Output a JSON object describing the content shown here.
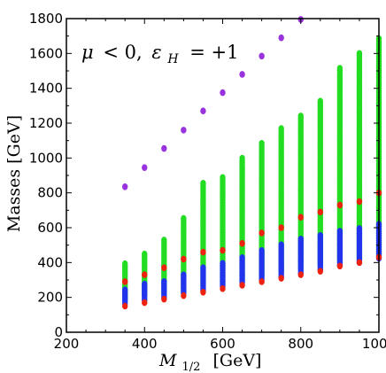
{
  "chart_data": {
    "type": "scatter",
    "title": "",
    "xlabel": {
      "symbol": "M",
      "sub": "1/2",
      "unit": "[GeV]"
    },
    "ylabel": "Masses [GeV]",
    "annotation": {
      "mu": "μ",
      "op1": "< 0,",
      "eps": "ε",
      "epssub": "H",
      "op2": "= +1"
    },
    "xlim": [
      200,
      1000
    ],
    "ylim": [
      0,
      1800
    ],
    "xticks": [
      200,
      400,
      600,
      800,
      1000
    ],
    "yticks": [
      0,
      200,
      400,
      600,
      800,
      1000,
      1200,
      1400,
      1600,
      1800
    ],
    "grid": false,
    "series": [
      {
        "color": "#22dd22",
        "mode": "bands",
        "bands": [
          {
            "x": 350,
            "min": 185,
            "max": 395
          },
          {
            "x": 400,
            "min": 215,
            "max": 460
          },
          {
            "x": 450,
            "min": 230,
            "max": 530
          },
          {
            "x": 500,
            "min": 250,
            "max": 660
          },
          {
            "x": 550,
            "min": 270,
            "max": 855
          },
          {
            "x": 600,
            "min": 290,
            "max": 900
          },
          {
            "x": 650,
            "min": 310,
            "max": 1010
          },
          {
            "x": 700,
            "min": 330,
            "max": 1095
          },
          {
            "x": 750,
            "min": 350,
            "max": 1180
          },
          {
            "x": 800,
            "min": 370,
            "max": 1250
          },
          {
            "x": 850,
            "min": 390,
            "max": 1335
          },
          {
            "x": 900,
            "min": 410,
            "max": 1525
          },
          {
            "x": 950,
            "min": 430,
            "max": 1600
          },
          {
            "x": 1000,
            "min": 450,
            "max": 1690
          }
        ]
      },
      {
        "color": "#2233ee",
        "mode": "bands",
        "bands": [
          {
            "x": 350,
            "min": 165,
            "max": 250
          },
          {
            "x": 400,
            "min": 185,
            "max": 280
          },
          {
            "x": 450,
            "min": 200,
            "max": 300
          },
          {
            "x": 500,
            "min": 225,
            "max": 330
          },
          {
            "x": 550,
            "min": 240,
            "max": 370
          },
          {
            "x": 600,
            "min": 265,
            "max": 400
          },
          {
            "x": 650,
            "min": 285,
            "max": 430
          },
          {
            "x": 700,
            "min": 300,
            "max": 470
          },
          {
            "x": 750,
            "min": 320,
            "max": 510
          },
          {
            "x": 800,
            "min": 340,
            "max": 540
          },
          {
            "x": 850,
            "min": 360,
            "max": 560
          },
          {
            "x": 900,
            "min": 385,
            "max": 590
          },
          {
            "x": 950,
            "min": 400,
            "max": 600
          },
          {
            "x": 1000,
            "min": 425,
            "max": 630
          }
        ]
      },
      {
        "color": "#ee2211",
        "mode": "points",
        "points": [
          [
            350,
            150
          ],
          [
            350,
            290
          ],
          [
            400,
            170
          ],
          [
            400,
            330
          ],
          [
            450,
            190
          ],
          [
            450,
            370
          ],
          [
            500,
            210
          ],
          [
            500,
            420
          ],
          [
            550,
            230
          ],
          [
            550,
            460
          ],
          [
            600,
            250
          ],
          [
            600,
            470
          ],
          [
            650,
            270
          ],
          [
            650,
            510
          ],
          [
            700,
            290
          ],
          [
            700,
            570
          ],
          [
            750,
            310
          ],
          [
            750,
            600
          ],
          [
            800,
            330
          ],
          [
            800,
            660
          ],
          [
            850,
            350
          ],
          [
            850,
            690
          ],
          [
            900,
            380
          ],
          [
            900,
            730
          ],
          [
            950,
            400
          ],
          [
            950,
            750
          ],
          [
            1000,
            430
          ],
          [
            1000,
            800
          ]
        ]
      },
      {
        "color": "#9933dd",
        "mode": "points",
        "points": [
          [
            350,
            835
          ],
          [
            400,
            945
          ],
          [
            450,
            1055
          ],
          [
            500,
            1160
          ],
          [
            550,
            1270
          ],
          [
            600,
            1375
          ],
          [
            650,
            1480
          ],
          [
            700,
            1585
          ],
          [
            750,
            1690
          ],
          [
            800,
            1795
          ]
        ]
      }
    ]
  }
}
